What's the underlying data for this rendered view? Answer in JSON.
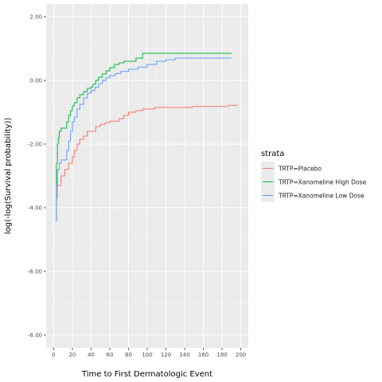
{
  "chart_data": {
    "type": "line",
    "step": true,
    "xlabel": "Time to First Dermatologic Event",
    "ylabel": "log(-log(Survival probability))",
    "xlim": [
      -8,
      208
    ],
    "ylim": [
      -8.4,
      2.4
    ],
    "x_ticks": [
      0,
      20,
      40,
      60,
      80,
      100,
      120,
      140,
      160,
      180,
      200
    ],
    "x_tick_labels": [
      "0",
      "20",
      "40",
      "60",
      "80",
      "100",
      "120",
      "140",
      "160",
      "180",
      "200"
    ],
    "y_ticks": [
      -8,
      -6,
      -4,
      -2,
      0,
      2
    ],
    "y_tick_labels": [
      "-8.00",
      "-6.00",
      "-4.00",
      "-2.00",
      "0.00",
      "2.00"
    ],
    "grid": true,
    "legend": {
      "title": "strata",
      "position": "right"
    },
    "series": [
      {
        "name": "TRTP=Placebo",
        "color": "#F8766D",
        "points": [
          [
            2,
            -4.4
          ],
          [
            3,
            -3.7
          ],
          [
            4,
            -3.3
          ],
          [
            8,
            -3.0
          ],
          [
            12,
            -2.8
          ],
          [
            16,
            -2.6
          ],
          [
            20,
            -2.4
          ],
          [
            22,
            -2.2
          ],
          [
            25,
            -2.0
          ],
          [
            28,
            -1.85
          ],
          [
            32,
            -1.75
          ],
          [
            36,
            -1.6
          ],
          [
            45,
            -1.45
          ],
          [
            50,
            -1.38
          ],
          [
            55,
            -1.33
          ],
          [
            60,
            -1.28
          ],
          [
            70,
            -1.2
          ],
          [
            75,
            -1.1
          ],
          [
            80,
            -1.0
          ],
          [
            88,
            -0.95
          ],
          [
            95,
            -0.9
          ],
          [
            108,
            -0.85
          ],
          [
            135,
            -0.85
          ],
          [
            148,
            -0.82
          ],
          [
            180,
            -0.82
          ],
          [
            187,
            -0.78
          ],
          [
            197,
            -0.78
          ]
        ]
      },
      {
        "name": "TRTP=Xanomeline High Dose",
        "color": "#00BA38",
        "points": [
          [
            2,
            -4.4
          ],
          [
            3,
            -2.6
          ],
          [
            4,
            -2.0
          ],
          [
            5,
            -1.8
          ],
          [
            6,
            -1.6
          ],
          [
            8,
            -1.5
          ],
          [
            14,
            -1.3
          ],
          [
            16,
            -1.1
          ],
          [
            18,
            -0.95
          ],
          [
            20,
            -0.8
          ],
          [
            22,
            -0.7
          ],
          [
            25,
            -0.55
          ],
          [
            28,
            -0.45
          ],
          [
            32,
            -0.35
          ],
          [
            36,
            -0.25
          ],
          [
            40,
            -0.2
          ],
          [
            42,
            -0.12
          ],
          [
            45,
            0.0
          ],
          [
            48,
            0.1
          ],
          [
            52,
            0.2
          ],
          [
            56,
            0.3
          ],
          [
            60,
            0.4
          ],
          [
            65,
            0.5
          ],
          [
            70,
            0.55
          ],
          [
            75,
            0.6
          ],
          [
            88,
            0.7
          ],
          [
            95,
            0.85
          ],
          [
            170,
            0.85
          ],
          [
            190,
            0.85
          ]
        ]
      },
      {
        "name": "TRTP=Xanomeline Low Dose",
        "color": "#619CFF",
        "points": [
          [
            2,
            -4.4
          ],
          [
            3,
            -3.3
          ],
          [
            4,
            -2.8
          ],
          [
            6,
            -2.6
          ],
          [
            8,
            -2.5
          ],
          [
            14,
            -2.2
          ],
          [
            16,
            -1.9
          ],
          [
            18,
            -1.6
          ],
          [
            20,
            -1.3
          ],
          [
            22,
            -1.15
          ],
          [
            25,
            -0.9
          ],
          [
            28,
            -0.75
          ],
          [
            32,
            -0.55
          ],
          [
            36,
            -0.4
          ],
          [
            40,
            -0.32
          ],
          [
            44,
            -0.22
          ],
          [
            48,
            -0.1
          ],
          [
            52,
            0.0
          ],
          [
            56,
            0.08
          ],
          [
            60,
            0.15
          ],
          [
            66,
            0.22
          ],
          [
            72,
            0.28
          ],
          [
            80,
            0.35
          ],
          [
            90,
            0.42
          ],
          [
            100,
            0.5
          ],
          [
            110,
            0.6
          ],
          [
            120,
            0.65
          ],
          [
            130,
            0.7
          ],
          [
            160,
            0.7
          ],
          [
            190,
            0.7
          ]
        ]
      }
    ]
  }
}
